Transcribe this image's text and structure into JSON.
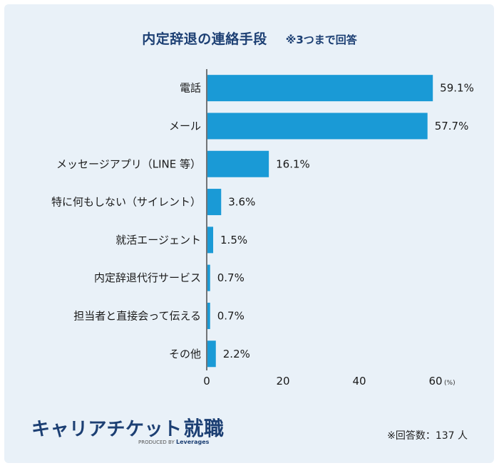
{
  "title": "内定辞退の連絡手段",
  "note": "※3つまで回答",
  "chart_data": {
    "type": "bar",
    "orientation": "horizontal",
    "categories": [
      "電話",
      "メール",
      "メッセージアプリ（LINE 等）",
      "特に何もしない（サイレント）",
      "就活エージェント",
      "内定辞退代行サービス",
      "担当者と直接会って伝える",
      "その他"
    ],
    "values": [
      59.1,
      57.7,
      16.1,
      3.6,
      1.5,
      0.7,
      0.7,
      2.2
    ],
    "value_labels": [
      "59.1%",
      "57.7%",
      "16.1%",
      "3.6%",
      "1.5%",
      "0.7%",
      "0.7%",
      "2.2%"
    ],
    "xlim": [
      0,
      60
    ],
    "xticks": [
      0,
      20,
      40,
      60
    ],
    "xtick_labels": [
      "0",
      "20",
      "40",
      "60"
    ],
    "x_unit": "(%)",
    "bar_color": "#1a9ad6",
    "grid": false
  },
  "logo": {
    "main": "キャリアチケット",
    "accent": "就職",
    "sub_prefix": "PRODUCED BY",
    "sub_brand": "Leverages"
  },
  "respondents": "※回答数：137 人"
}
